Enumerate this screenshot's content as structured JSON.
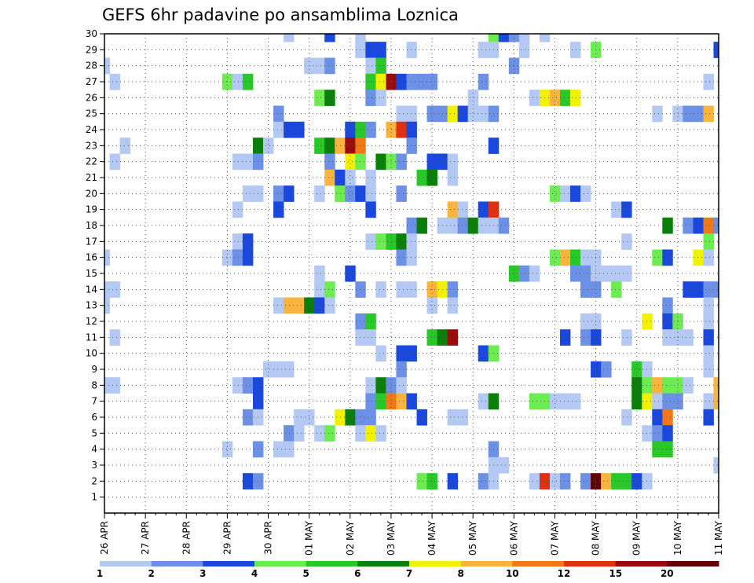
{
  "chart_data": {
    "type": "heatmap",
    "title": "GEFS 6hr padavine po ansamblima Loznica",
    "xlabel": "",
    "ylabel": "",
    "x_tick_labels": [
      "26 APR",
      "27 APR",
      "28 APR",
      "29 APR",
      "30 APR",
      "01 MAY",
      "02 MAY",
      "03 MAY",
      "04 MAY",
      "05 MAY",
      "06 MAY",
      "07 MAY",
      "08 MAY",
      "09 MAY",
      "10 MAY",
      "11 MAY"
    ],
    "y_tick_labels": [
      "1",
      "2",
      "3",
      "4",
      "5",
      "6",
      "7",
      "8",
      "9",
      "10",
      "11",
      "12",
      "13",
      "14",
      "15",
      "16",
      "17",
      "18",
      "19",
      "20",
      "21",
      "22",
      "23",
      "24",
      "25",
      "26",
      "27",
      "28",
      "29",
      "30"
    ],
    "time_steps_per_day": 4,
    "time_steps": 61,
    "members": 30,
    "grid": true,
    "legend": "horizontal colorbar at bottom",
    "colorbar": {
      "levels": [
        "1",
        "2",
        "3",
        "4",
        "5",
        "6",
        "7",
        "8",
        "10",
        "12",
        "15",
        "20"
      ],
      "colors": [
        "#b4c8f4",
        "#6b90e6",
        "#1a48dc",
        "#6cec50",
        "#28c828",
        "#0a800a",
        "#f2f200",
        "#f8b43c",
        "#f07818",
        "#e03010",
        "#9a0c0c",
        "#600000"
      ]
    },
    "cells": [
      [
        30,
        18,
        1
      ],
      [
        30,
        22,
        3
      ],
      [
        30,
        25,
        1
      ],
      [
        30,
        38,
        4
      ],
      [
        30,
        39,
        3
      ],
      [
        30,
        40,
        2
      ],
      [
        30,
        41,
        1
      ],
      [
        30,
        43,
        1
      ],
      [
        29,
        25,
        1
      ],
      [
        29,
        26,
        3
      ],
      [
        29,
        27,
        3
      ],
      [
        29,
        30,
        1
      ],
      [
        29,
        37,
        1
      ],
      [
        29,
        38,
        1
      ],
      [
        29,
        41,
        1
      ],
      [
        29,
        46,
        1
      ],
      [
        29,
        48,
        4
      ],
      [
        29,
        60,
        3
      ],
      [
        28,
        0,
        1
      ],
      [
        28,
        20,
        1
      ],
      [
        28,
        21,
        1
      ],
      [
        28,
        22,
        2
      ],
      [
        28,
        26,
        1
      ],
      [
        28,
        27,
        5
      ],
      [
        28,
        40,
        2
      ],
      [
        27,
        1,
        1
      ],
      [
        27,
        12,
        4
      ],
      [
        27,
        13,
        1
      ],
      [
        27,
        14,
        5
      ],
      [
        27,
        26,
        5
      ],
      [
        27,
        27,
        7
      ],
      [
        27,
        28,
        11
      ],
      [
        27,
        29,
        3
      ],
      [
        27,
        30,
        2
      ],
      [
        27,
        31,
        2
      ],
      [
        27,
        32,
        2
      ],
      [
        27,
        37,
        2
      ],
      [
        27,
        59,
        1
      ],
      [
        26,
        21,
        4
      ],
      [
        26,
        22,
        6
      ],
      [
        26,
        26,
        2
      ],
      [
        26,
        27,
        1
      ],
      [
        26,
        36,
        1
      ],
      [
        26,
        42,
        1
      ],
      [
        26,
        43,
        7
      ],
      [
        26,
        44,
        8
      ],
      [
        26,
        45,
        5
      ],
      [
        26,
        46,
        7
      ],
      [
        25,
        17,
        2
      ],
      [
        25,
        29,
        1
      ],
      [
        25,
        30,
        1
      ],
      [
        25,
        32,
        2
      ],
      [
        25,
        33,
        2
      ],
      [
        25,
        34,
        7
      ],
      [
        25,
        35,
        3
      ],
      [
        25,
        36,
        1
      ],
      [
        25,
        37,
        1
      ],
      [
        25,
        38,
        2
      ],
      [
        25,
        54,
        1
      ],
      [
        25,
        56,
        1
      ],
      [
        25,
        57,
        2
      ],
      [
        25,
        58,
        2
      ],
      [
        25,
        59,
        8
      ],
      [
        24,
        17,
        1
      ],
      [
        24,
        18,
        3
      ],
      [
        24,
        19,
        3
      ],
      [
        24,
        24,
        3
      ],
      [
        24,
        25,
        5
      ],
      [
        24,
        26,
        2
      ],
      [
        24,
        28,
        8
      ],
      [
        24,
        29,
        10
      ],
      [
        24,
        30,
        3
      ],
      [
        23,
        2,
        1
      ],
      [
        23,
        15,
        6
      ],
      [
        23,
        16,
        1
      ],
      [
        23,
        21,
        5
      ],
      [
        23,
        22,
        6
      ],
      [
        23,
        23,
        8
      ],
      [
        23,
        24,
        11
      ],
      [
        23,
        25,
        9
      ],
      [
        23,
        30,
        2
      ],
      [
        23,
        38,
        3
      ],
      [
        22,
        1,
        1
      ],
      [
        22,
        13,
        1
      ],
      [
        22,
        14,
        1
      ],
      [
        22,
        15,
        2
      ],
      [
        22,
        22,
        2
      ],
      [
        22,
        24,
        7
      ],
      [
        22,
        25,
        4
      ],
      [
        22,
        27,
        6
      ],
      [
        22,
        28,
        4
      ],
      [
        22,
        29,
        2
      ],
      [
        22,
        32,
        3
      ],
      [
        22,
        33,
        3
      ],
      [
        22,
        34,
        1
      ],
      [
        21,
        22,
        8
      ],
      [
        21,
        23,
        3
      ],
      [
        21,
        24,
        1
      ],
      [
        21,
        26,
        1
      ],
      [
        21,
        31,
        5
      ],
      [
        21,
        32,
        6
      ],
      [
        21,
        34,
        1
      ],
      [
        20,
        14,
        1
      ],
      [
        20,
        15,
        1
      ],
      [
        20,
        17,
        2
      ],
      [
        20,
        18,
        3
      ],
      [
        20,
        21,
        1
      ],
      [
        20,
        23,
        4
      ],
      [
        20,
        24,
        2
      ],
      [
        20,
        25,
        3
      ],
      [
        20,
        26,
        1
      ],
      [
        20,
        29,
        2
      ],
      [
        20,
        44,
        4
      ],
      [
        20,
        45,
        1
      ],
      [
        20,
        46,
        3
      ],
      [
        20,
        47,
        1
      ],
      [
        19,
        13,
        1
      ],
      [
        19,
        17,
        3
      ],
      [
        19,
        26,
        3
      ],
      [
        19,
        34,
        8
      ],
      [
        19,
        35,
        1
      ],
      [
        19,
        37,
        3
      ],
      [
        19,
        38,
        10
      ],
      [
        19,
        50,
        1
      ],
      [
        19,
        51,
        3
      ],
      [
        18,
        30,
        2
      ],
      [
        18,
        31,
        6
      ],
      [
        18,
        33,
        1
      ],
      [
        18,
        34,
        1
      ],
      [
        18,
        35,
        2
      ],
      [
        18,
        36,
        6
      ],
      [
        18,
        37,
        1
      ],
      [
        18,
        38,
        1
      ],
      [
        18,
        39,
        2
      ],
      [
        18,
        55,
        6
      ],
      [
        18,
        57,
        2
      ],
      [
        18,
        58,
        3
      ],
      [
        18,
        59,
        9
      ],
      [
        18,
        60,
        2
      ],
      [
        17,
        13,
        1
      ],
      [
        17,
        14,
        3
      ],
      [
        17,
        26,
        1
      ],
      [
        17,
        27,
        4
      ],
      [
        17,
        28,
        5
      ],
      [
        17,
        29,
        6
      ],
      [
        17,
        30,
        1
      ],
      [
        17,
        51,
        1
      ],
      [
        17,
        59,
        4
      ],
      [
        16,
        0,
        1
      ],
      [
        16,
        12,
        1
      ],
      [
        16,
        13,
        2
      ],
      [
        16,
        14,
        3
      ],
      [
        16,
        29,
        2
      ],
      [
        16,
        30,
        1
      ],
      [
        16,
        44,
        4
      ],
      [
        16,
        45,
        8
      ],
      [
        16,
        46,
        5
      ],
      [
        16,
        47,
        1
      ],
      [
        16,
        48,
        1
      ],
      [
        16,
        54,
        4
      ],
      [
        16,
        55,
        3
      ],
      [
        16,
        58,
        7
      ],
      [
        16,
        59,
        1
      ],
      [
        15,
        21,
        1
      ],
      [
        15,
        24,
        3
      ],
      [
        15,
        40,
        5
      ],
      [
        15,
        41,
        2
      ],
      [
        15,
        42,
        1
      ],
      [
        15,
        46,
        2
      ],
      [
        15,
        47,
        2
      ],
      [
        15,
        48,
        1
      ],
      [
        15,
        49,
        1
      ],
      [
        15,
        50,
        1
      ],
      [
        15,
        51,
        1
      ],
      [
        14,
        0,
        1
      ],
      [
        14,
        1,
        1
      ],
      [
        14,
        21,
        1
      ],
      [
        14,
        22,
        4
      ],
      [
        14,
        25,
        2
      ],
      [
        14,
        27,
        1
      ],
      [
        14,
        29,
        1
      ],
      [
        14,
        30,
        1
      ],
      [
        14,
        32,
        8
      ],
      [
        14,
        33,
        7
      ],
      [
        14,
        34,
        2
      ],
      [
        14,
        47,
        2
      ],
      [
        14,
        48,
        2
      ],
      [
        14,
        50,
        4
      ],
      [
        14,
        57,
        3
      ],
      [
        14,
        58,
        3
      ],
      [
        14,
        59,
        2
      ],
      [
        14,
        60,
        2
      ],
      [
        13,
        0,
        1
      ],
      [
        13,
        17,
        1
      ],
      [
        13,
        18,
        8
      ],
      [
        13,
        19,
        8
      ],
      [
        13,
        20,
        6
      ],
      [
        13,
        21,
        3
      ],
      [
        13,
        22,
        1
      ],
      [
        13,
        32,
        1
      ],
      [
        13,
        34,
        1
      ],
      [
        13,
        55,
        2
      ],
      [
        13,
        59,
        1
      ],
      [
        12,
        25,
        2
      ],
      [
        12,
        26,
        5
      ],
      [
        12,
        47,
        1
      ],
      [
        12,
        48,
        1
      ],
      [
        12,
        53,
        7
      ],
      [
        12,
        55,
        3
      ],
      [
        12,
        56,
        4
      ],
      [
        12,
        59,
        1
      ],
      [
        11,
        1,
        1
      ],
      [
        11,
        25,
        1
      ],
      [
        11,
        26,
        1
      ],
      [
        11,
        32,
        5
      ],
      [
        11,
        33,
        6
      ],
      [
        11,
        34,
        11
      ],
      [
        11,
        45,
        3
      ],
      [
        11,
        47,
        2
      ],
      [
        11,
        48,
        3
      ],
      [
        11,
        51,
        1
      ],
      [
        11,
        55,
        1
      ],
      [
        11,
        56,
        1
      ],
      [
        11,
        57,
        1
      ],
      [
        11,
        59,
        3
      ],
      [
        10,
        27,
        1
      ],
      [
        10,
        29,
        3
      ],
      [
        10,
        30,
        3
      ],
      [
        10,
        37,
        3
      ],
      [
        10,
        38,
        4
      ],
      [
        10,
        59,
        1
      ],
      [
        9,
        16,
        1
      ],
      [
        9,
        17,
        1
      ],
      [
        9,
        18,
        1
      ],
      [
        9,
        29,
        2
      ],
      [
        9,
        48,
        3
      ],
      [
        9,
        49,
        2
      ],
      [
        9,
        52,
        5
      ],
      [
        9,
        53,
        1
      ],
      [
        9,
        59,
        1
      ],
      [
        8,
        0,
        1
      ],
      [
        8,
        1,
        1
      ],
      [
        8,
        13,
        1
      ],
      [
        8,
        14,
        2
      ],
      [
        8,
        15,
        3
      ],
      [
        8,
        26,
        1
      ],
      [
        8,
        27,
        6
      ],
      [
        8,
        28,
        2
      ],
      [
        8,
        29,
        1
      ],
      [
        8,
        52,
        6
      ],
      [
        8,
        53,
        4
      ],
      [
        8,
        54,
        8
      ],
      [
        8,
        55,
        4
      ],
      [
        8,
        56,
        4
      ],
      [
        8,
        57,
        1
      ],
      [
        8,
        60,
        8
      ],
      [
        7,
        15,
        3
      ],
      [
        7,
        26,
        2
      ],
      [
        7,
        27,
        5
      ],
      [
        7,
        28,
        9
      ],
      [
        7,
        29,
        8
      ],
      [
        7,
        30,
        3
      ],
      [
        7,
        37,
        1
      ],
      [
        7,
        38,
        6
      ],
      [
        7,
        42,
        4
      ],
      [
        7,
        43,
        4
      ],
      [
        7,
        44,
        1
      ],
      [
        7,
        45,
        1
      ],
      [
        7,
        46,
        1
      ],
      [
        7,
        52,
        6
      ],
      [
        7,
        53,
        7
      ],
      [
        7,
        54,
        1
      ],
      [
        7,
        55,
        2
      ],
      [
        7,
        56,
        2
      ],
      [
        7,
        59,
        1
      ],
      [
        7,
        60,
        8
      ],
      [
        6,
        14,
        2
      ],
      [
        6,
        15,
        1
      ],
      [
        6,
        19,
        1
      ],
      [
        6,
        20,
        1
      ],
      [
        6,
        23,
        7
      ],
      [
        6,
        24,
        6
      ],
      [
        6,
        25,
        2
      ],
      [
        6,
        26,
        2
      ],
      [
        6,
        31,
        3
      ],
      [
        6,
        34,
        1
      ],
      [
        6,
        35,
        1
      ],
      [
        6,
        51,
        1
      ],
      [
        6,
        54,
        3
      ],
      [
        6,
        55,
        9
      ],
      [
        6,
        59,
        3
      ],
      [
        5,
        18,
        2
      ],
      [
        5,
        19,
        1
      ],
      [
        5,
        21,
        1
      ],
      [
        5,
        22,
        4
      ],
      [
        5,
        25,
        1
      ],
      [
        5,
        26,
        7
      ],
      [
        5,
        27,
        1
      ],
      [
        5,
        53,
        1
      ],
      [
        5,
        54,
        2
      ],
      [
        5,
        55,
        3
      ],
      [
        4,
        12,
        1
      ],
      [
        4,
        15,
        2
      ],
      [
        4,
        17,
        1
      ],
      [
        4,
        18,
        1
      ],
      [
        4,
        38,
        2
      ],
      [
        4,
        54,
        5
      ],
      [
        4,
        55,
        5
      ],
      [
        3,
        38,
        1
      ],
      [
        3,
        39,
        1
      ],
      [
        3,
        60,
        1
      ],
      [
        2,
        14,
        3
      ],
      [
        2,
        15,
        2
      ],
      [
        2,
        31,
        4
      ],
      [
        2,
        32,
        5
      ],
      [
        2,
        34,
        3
      ],
      [
        2,
        37,
        2
      ],
      [
        2,
        38,
        1
      ],
      [
        2,
        42,
        1
      ],
      [
        2,
        43,
        10
      ],
      [
        2,
        44,
        1
      ],
      [
        2,
        45,
        2
      ],
      [
        2,
        47,
        2
      ],
      [
        2,
        48,
        12
      ],
      [
        2,
        49,
        8
      ],
      [
        2,
        50,
        5
      ],
      [
        2,
        51,
        5
      ],
      [
        2,
        52,
        3
      ],
      [
        2,
        53,
        1
      ]
    ]
  }
}
